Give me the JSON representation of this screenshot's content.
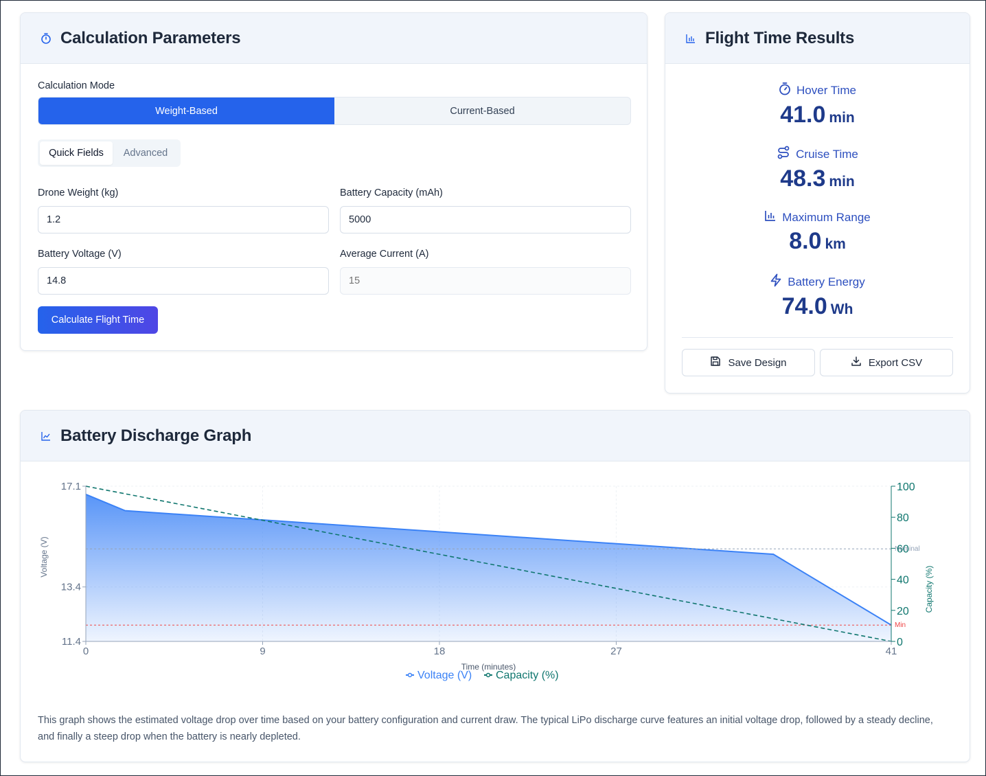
{
  "params": {
    "title": "Calculation Parameters",
    "mode_label": "Calculation Mode",
    "modes": [
      "Weight-Based",
      "Current-Based"
    ],
    "tabs": [
      "Quick Fields",
      "Advanced"
    ],
    "fields": {
      "weight": {
        "label": "Drone Weight (kg)",
        "value": "1.2"
      },
      "capacity": {
        "label": "Battery Capacity (mAh)",
        "value": "5000"
      },
      "voltage": {
        "label": "Battery Voltage (V)",
        "value": "14.8"
      },
      "current": {
        "label": "Average Current (A)",
        "placeholder": "15"
      }
    },
    "calculate_label": "Calculate Flight Time"
  },
  "results": {
    "title": "Flight Time Results",
    "metrics": [
      {
        "label": "Hover Time",
        "value": "41.0",
        "unit": "min",
        "icon": "timer-icon"
      },
      {
        "label": "Cruise Time",
        "value": "48.3",
        "unit": "min",
        "icon": "route-icon"
      },
      {
        "label": "Maximum Range",
        "value": "8.0",
        "unit": "km",
        "icon": "bar-chart-icon"
      },
      {
        "label": "Battery Energy",
        "value": "74.0",
        "unit": "Wh",
        "icon": "lightning-icon"
      }
    ],
    "save_label": "Save Design",
    "export_label": "Export CSV"
  },
  "graph": {
    "title": "Battery Discharge Graph",
    "description": "This graph shows the estimated voltage drop over time based on your battery configuration and current draw. The typical LiPo discharge curve features an initial voltage drop, followed by a steady decline, and finally a steep drop when the battery is nearly depleted."
  },
  "chart_data": {
    "type": "area",
    "xlabel": "Time (minutes)",
    "ylabel": "Voltage (V)",
    "y2label": "Capacity (%)",
    "x_ticks": [
      0,
      9,
      18,
      27,
      41
    ],
    "y_ticks": [
      11.4,
      13.4,
      17.1
    ],
    "y2_ticks": [
      0,
      20,
      40,
      60,
      80,
      100
    ],
    "xlim": [
      0,
      41
    ],
    "ylim": [
      11.4,
      17.1
    ],
    "y2lim": [
      0,
      100
    ],
    "series": [
      {
        "name": "Voltage (V)",
        "axis": "left",
        "color": "#3b82f6",
        "x": [
          0,
          2,
          35,
          41
        ],
        "y": [
          16.8,
          16.2,
          14.6,
          12.0
        ]
      },
      {
        "name": "Capacity (%)",
        "axis": "right",
        "color": "#0f766e",
        "x": [
          0,
          41
        ],
        "y": [
          100,
          0
        ]
      }
    ],
    "reference_lines": [
      {
        "label": "Nominal",
        "value": 14.8,
        "color": "#94a3b8"
      },
      {
        "label": "Min",
        "value": 12.0,
        "color": "#ef4444"
      }
    ],
    "legend_position": "bottom"
  }
}
